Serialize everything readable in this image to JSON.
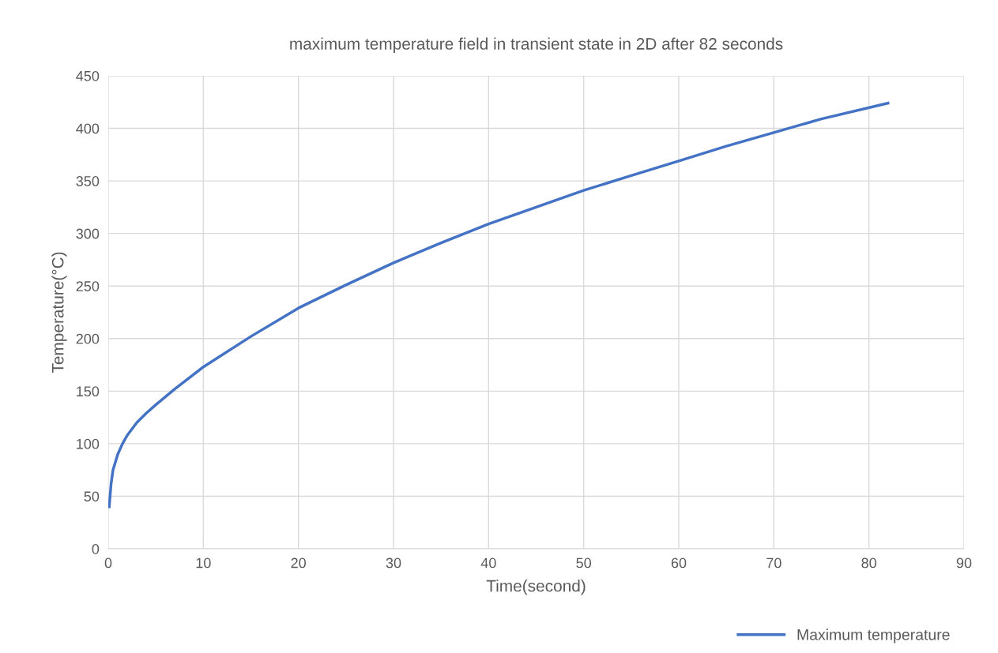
{
  "chart_data": {
    "type": "line",
    "title": "maximum temperature field in transient state in 2D after 82 seconds",
    "xlabel": "Time(second)",
    "ylabel": "Temperature(°C)",
    "series": [
      {
        "name": "Maximum temperature",
        "color": "#4472c4",
        "x": [
          0.1,
          0.3,
          0.5,
          1,
          1.5,
          2,
          3,
          4,
          5,
          7,
          10,
          15,
          20,
          25,
          30,
          35,
          40,
          45,
          50,
          55,
          60,
          65,
          70,
          75,
          82
        ],
        "values": [
          40,
          62,
          75,
          90,
          100,
          108,
          120,
          129,
          137,
          152,
          173,
          202,
          229,
          251,
          272,
          291,
          309,
          325,
          341,
          355,
          369,
          383,
          396,
          409,
          424
        ]
      }
    ],
    "xlim": [
      0,
      90
    ],
    "xticks": [
      0,
      10,
      20,
      30,
      40,
      50,
      60,
      70,
      80,
      90
    ],
    "ylim": [
      0,
      450
    ],
    "yticks": [
      0,
      50,
      100,
      150,
      200,
      250,
      300,
      350,
      400,
      450
    ],
    "grid": true,
    "legend": "bottom right",
    "marker": "none",
    "line_style": "solid"
  }
}
